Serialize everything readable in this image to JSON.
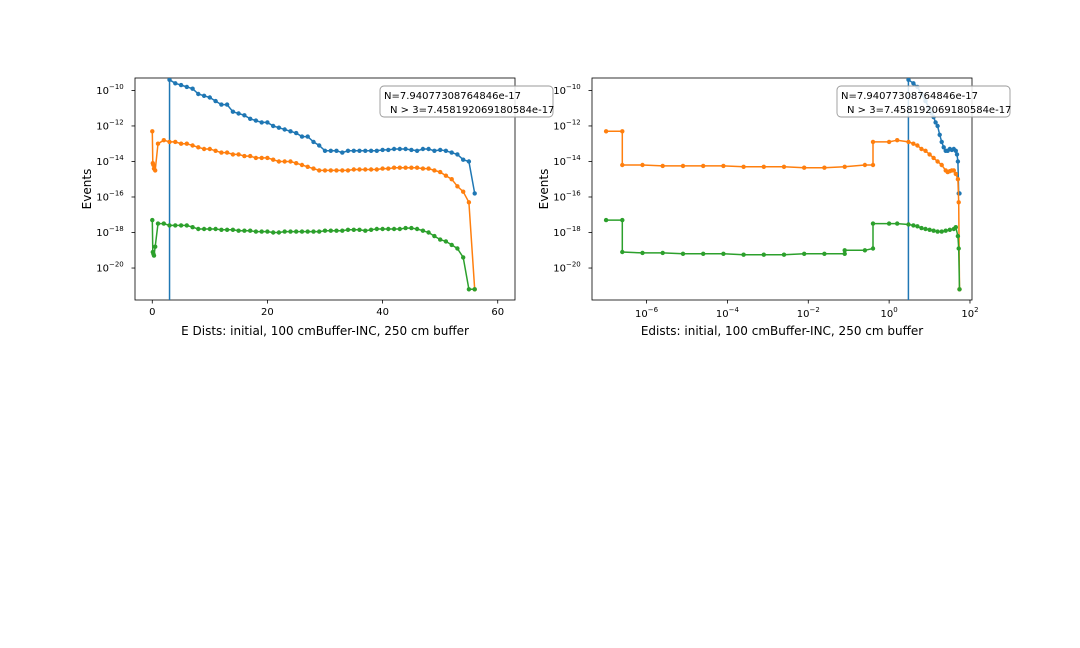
{
  "chart_data": [
    {
      "type": "line",
      "xscale": "linear",
      "yscale": "log",
      "xlabel": "E Dists: initial, 100 cmBuffer-INC, 250 cm buffer",
      "ylabel": "Events",
      "xlim": [
        -3,
        63
      ],
      "ylim_log10": [
        -21.8,
        -9.3
      ],
      "xticks": [
        0,
        20,
        40,
        60
      ],
      "xtick_labels": [
        "0",
        "20",
        "40",
        "60"
      ],
      "yticks_log10": [
        -20,
        -18,
        -16,
        -14,
        -12,
        -10
      ],
      "vline_x": 3.0,
      "annotation": [
        "N=7.94077308764846e-17",
        "N > 3=7.45819206918058​4e-17"
      ],
      "series": [
        {
          "color": "#1f77b4",
          "x": [
            3,
            4,
            5,
            6,
            7,
            8,
            9,
            10,
            11,
            12,
            13,
            14,
            15,
            16,
            17,
            18,
            19,
            20,
            21,
            22,
            23,
            24,
            25,
            26,
            27,
            28,
            29,
            30,
            31,
            32,
            33,
            34,
            35,
            36,
            37,
            38,
            39,
            40,
            41,
            42,
            43,
            44,
            45,
            46,
            47,
            48,
            49,
            50,
            51,
            52,
            53,
            54,
            55,
            56
          ],
          "y_log10": [
            -9.4,
            -9.6,
            -9.7,
            -9.8,
            -9.9,
            -10.2,
            -10.3,
            -10.4,
            -10.6,
            -10.8,
            -10.8,
            -11.2,
            -11.3,
            -11.4,
            -11.6,
            -11.7,
            -11.8,
            -11.8,
            -12.0,
            -12.1,
            -12.2,
            -12.3,
            -12.4,
            -12.6,
            -12.6,
            -12.9,
            -13.1,
            -13.4,
            -13.4,
            -13.4,
            -13.5,
            -13.4,
            -13.4,
            -13.4,
            -13.4,
            -13.4,
            -13.4,
            -13.35,
            -13.35,
            -13.3,
            -13.3,
            -13.3,
            -13.35,
            -13.4,
            -13.3,
            -13.3,
            -13.4,
            -13.35,
            -13.4,
            -13.5,
            -13.6,
            -13.9,
            -14.0,
            -15.8
          ]
        },
        {
          "color": "#ff7f0e",
          "x": [
            0,
            0.1,
            0.2,
            0.3,
            0.5,
            1,
            2,
            3,
            4,
            5,
            6,
            7,
            8,
            9,
            10,
            11,
            12,
            13,
            14,
            15,
            16,
            17,
            18,
            19,
            20,
            21,
            22,
            23,
            24,
            25,
            26,
            27,
            28,
            29,
            30,
            31,
            32,
            33,
            34,
            35,
            36,
            37,
            38,
            39,
            40,
            41,
            42,
            43,
            44,
            45,
            46,
            47,
            48,
            49,
            50,
            51,
            52,
            53,
            54,
            55,
            56
          ],
          "y_log10": [
            -12.3,
            -14.1,
            -14.2,
            -14.4,
            -14.5,
            -13.0,
            -12.8,
            -12.9,
            -12.9,
            -13.0,
            -13.0,
            -13.1,
            -13.2,
            -13.3,
            -13.3,
            -13.4,
            -13.5,
            -13.5,
            -13.6,
            -13.6,
            -13.7,
            -13.7,
            -13.8,
            -13.8,
            -13.8,
            -13.9,
            -14.0,
            -14.0,
            -14.0,
            -14.1,
            -14.2,
            -14.3,
            -14.4,
            -14.5,
            -14.5,
            -14.5,
            -14.5,
            -14.5,
            -14.5,
            -14.45,
            -14.45,
            -14.45,
            -14.45,
            -14.45,
            -14.4,
            -14.4,
            -14.35,
            -14.35,
            -14.35,
            -14.35,
            -14.35,
            -14.4,
            -14.4,
            -14.5,
            -14.6,
            -14.8,
            -15.0,
            -15.4,
            -15.7,
            -16.3,
            -21.2
          ]
        },
        {
          "color": "#2ca02c",
          "x": [
            0,
            0.1,
            0.2,
            0.3,
            0.5,
            1,
            2,
            3,
            4,
            5,
            6,
            7,
            8,
            9,
            10,
            11,
            12,
            13,
            14,
            15,
            16,
            17,
            18,
            19,
            20,
            21,
            22,
            23,
            24,
            25,
            26,
            27,
            28,
            29,
            30,
            31,
            32,
            33,
            34,
            35,
            36,
            37,
            38,
            39,
            40,
            41,
            42,
            43,
            44,
            45,
            46,
            47,
            48,
            49,
            50,
            51,
            52,
            53,
            54,
            55,
            56
          ],
          "y_log10": [
            -17.3,
            -19.1,
            -19.2,
            -19.3,
            -18.8,
            -17.5,
            -17.5,
            -17.6,
            -17.6,
            -17.6,
            -17.6,
            -17.7,
            -17.8,
            -17.8,
            -17.8,
            -17.8,
            -17.85,
            -17.85,
            -17.85,
            -17.9,
            -17.9,
            -17.9,
            -17.95,
            -17.95,
            -17.95,
            -18.0,
            -18.0,
            -17.95,
            -17.95,
            -17.95,
            -17.95,
            -17.95,
            -17.95,
            -17.95,
            -17.9,
            -17.9,
            -17.9,
            -17.9,
            -17.85,
            -17.85,
            -17.85,
            -17.9,
            -17.85,
            -17.8,
            -17.8,
            -17.8,
            -17.8,
            -17.8,
            -17.75,
            -17.75,
            -17.8,
            -17.9,
            -18.0,
            -18.2,
            -18.4,
            -18.5,
            -18.7,
            -18.9,
            -19.4,
            -21.2,
            -21.2
          ]
        }
      ]
    },
    {
      "type": "line",
      "xscale": "log",
      "yscale": "log",
      "xlabel": "Edists: initial, 100 cmBuffer-INC, 250 cm buffer",
      "ylabel": "Events",
      "xlim_log10": [
        -7.35,
        2.05
      ],
      "ylim_log10": [
        -21.8,
        -9.3
      ],
      "xticks_log10": [
        -6,
        -4,
        -2,
        0,
        2
      ],
      "yticks_log10": [
        -20,
        -18,
        -16,
        -14,
        -12,
        -10
      ],
      "vline_x_log10": 0.477,
      "annotation": [
        "N=7.94077308764846e-17",
        "N > 3=7.45819206918058​4e-17"
      ],
      "series": [
        {
          "color": "#1f77b4",
          "x_log10": [
            0.48,
            0.6,
            0.7,
            0.8,
            0.9,
            1.0,
            1.05,
            1.1,
            1.15,
            1.2,
            1.25,
            1.3,
            1.35,
            1.4,
            1.45,
            1.5,
            1.55,
            1.6,
            1.65,
            1.68,
            1.7,
            1.72,
            1.74
          ],
          "y_log10": [
            -9.4,
            -9.6,
            -9.8,
            -10.2,
            -10.6,
            -11.0,
            -11.3,
            -11.5,
            -11.8,
            -12.0,
            -12.5,
            -12.9,
            -13.2,
            -13.4,
            -13.4,
            -13.3,
            -13.35,
            -13.3,
            -13.4,
            -13.6,
            -14.0,
            -15.8,
            -15.8
          ]
        },
        {
          "color": "#ff7f0e",
          "x_log10": [
            -7.0,
            -6.6,
            -6.6,
            -6.1,
            -5.6,
            -5.1,
            -4.6,
            -4.1,
            -3.6,
            -3.1,
            -2.6,
            -2.1,
            -1.6,
            -1.1,
            -0.6,
            -0.4,
            -0.4,
            0.0,
            0.2,
            0.48,
            0.6,
            0.7,
            0.8,
            0.9,
            1.0,
            1.1,
            1.2,
            1.3,
            1.4,
            1.45,
            1.5,
            1.55,
            1.6,
            1.65,
            1.7,
            1.72,
            1.74
          ],
          "y_log10": [
            -12.3,
            -12.3,
            -14.2,
            -14.2,
            -14.25,
            -14.25,
            -14.25,
            -14.25,
            -14.3,
            -14.3,
            -14.3,
            -14.35,
            -14.35,
            -14.3,
            -14.2,
            -14.2,
            -12.9,
            -12.9,
            -12.8,
            -12.9,
            -13.0,
            -13.1,
            -13.3,
            -13.4,
            -13.6,
            -13.8,
            -14.0,
            -14.2,
            -14.5,
            -14.6,
            -14.55,
            -14.5,
            -14.5,
            -14.7,
            -15.0,
            -16.3,
            -21.2
          ]
        },
        {
          "color": "#2ca02c",
          "x_log10": [
            -7.0,
            -6.6,
            -6.6,
            -6.1,
            -5.6,
            -5.1,
            -4.6,
            -4.1,
            -3.6,
            -3.1,
            -2.6,
            -2.1,
            -1.6,
            -1.1,
            -1.1,
            -0.6,
            -0.4,
            -0.4,
            0.0,
            0.2,
            0.48,
            0.6,
            0.7,
            0.8,
            0.9,
            1.0,
            1.1,
            1.2,
            1.3,
            1.4,
            1.5,
            1.6,
            1.65,
            1.7,
            1.72,
            1.74
          ],
          "y_log10": [
            -17.3,
            -17.3,
            -19.1,
            -19.15,
            -19.15,
            -19.2,
            -19.2,
            -19.2,
            -19.25,
            -19.25,
            -19.25,
            -19.2,
            -19.2,
            -19.2,
            -19.0,
            -19.0,
            -18.9,
            -17.5,
            -17.5,
            -17.5,
            -17.55,
            -17.6,
            -17.65,
            -17.75,
            -17.8,
            -17.85,
            -17.9,
            -17.95,
            -17.95,
            -17.9,
            -17.85,
            -17.8,
            -17.7,
            -18.2,
            -18.9,
            -21.2
          ]
        }
      ]
    }
  ]
}
